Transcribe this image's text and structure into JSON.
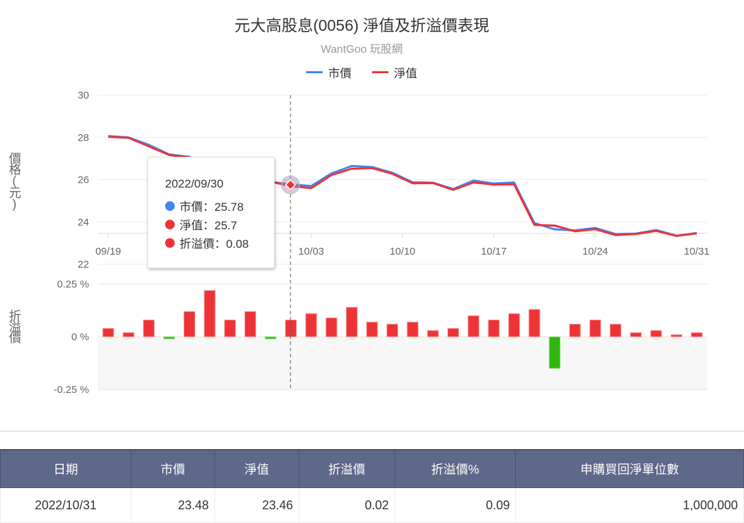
{
  "header": {
    "title": "元大高股息(0056) 淨值及折溢價表現",
    "subtitle": "WantGoo 玩股網"
  },
  "legend": [
    {
      "label": "市價",
      "color": "#4285f4"
    },
    {
      "label": "淨值",
      "color": "#ee3337"
    }
  ],
  "axes": {
    "price_title": "價格(元)",
    "premium_title": "折溢價",
    "price_ticks": [
      "30",
      "28",
      "26",
      "24",
      "22"
    ],
    "premium_ticks": [
      "0.25 %",
      "0 %",
      "-0.25 %"
    ],
    "x_ticks": [
      "09/19",
      "10/03",
      "10/10",
      "10/17",
      "10/24",
      "10/31"
    ]
  },
  "tooltip": {
    "date": "2022/09/30",
    "market_label": "市價：25.78",
    "nav_label": "淨值：25.7",
    "premium_label": "折溢價：0.08"
  },
  "chart_data": [
    {
      "type": "line",
      "title": "元大高股息(0056) 淨值及折溢價表現",
      "subtitle": "WantGoo 玩股網",
      "xlabel": "",
      "ylabel": "價格(元)",
      "ylim": [
        22,
        30
      ],
      "grid": true,
      "legend_position": "top",
      "x": [
        "09/19",
        "09/20",
        "09/21",
        "09/22",
        "09/23",
        "09/26",
        "09/27",
        "09/28",
        "09/29",
        "09/30",
        "10/03",
        "10/04",
        "10/05",
        "10/06",
        "10/07",
        "10/11",
        "10/12",
        "10/13",
        "10/14",
        "10/17",
        "10/18",
        "10/19",
        "10/20",
        "10/21",
        "10/24",
        "10/25",
        "10/26",
        "10/27",
        "10/28",
        "10/31"
      ],
      "series": [
        {
          "name": "市價",
          "color": "#4285f4",
          "values": [
            28.07,
            28.0,
            27.65,
            27.2,
            27.08,
            26.7,
            26.2,
            26.0,
            25.9,
            25.78,
            25.7,
            26.3,
            26.65,
            26.6,
            26.33,
            25.88,
            25.86,
            25.56,
            25.96,
            25.82,
            25.87,
            23.95,
            23.65,
            23.6,
            23.72,
            23.43,
            23.45,
            23.62,
            23.35,
            23.48
          ]
        },
        {
          "name": "淨值",
          "color": "#ee3337",
          "values": [
            28.03,
            27.98,
            27.58,
            27.17,
            27.05,
            26.65,
            26.15,
            25.98,
            25.9,
            25.7,
            25.6,
            26.22,
            26.52,
            26.55,
            26.28,
            25.83,
            25.84,
            25.52,
            25.87,
            25.77,
            25.78,
            23.86,
            23.83,
            23.56,
            23.66,
            23.38,
            23.43,
            23.58,
            23.34,
            23.46
          ]
        }
      ]
    },
    {
      "type": "bar",
      "title": "折溢價",
      "ylabel": "折溢價",
      "ylim": [
        -0.25,
        0.25
      ],
      "tick_labels": [
        "0.25 %",
        "0 %",
        "-0.25 %"
      ],
      "categories": [
        "09/19",
        "09/20",
        "09/21",
        "09/22",
        "09/23",
        "09/26",
        "09/27",
        "09/28",
        "09/29",
        "09/30",
        "10/03",
        "10/04",
        "10/05",
        "10/06",
        "10/07",
        "10/11",
        "10/12",
        "10/13",
        "10/14",
        "10/17",
        "10/18",
        "10/19",
        "10/20",
        "10/21",
        "10/24",
        "10/25",
        "10/26",
        "10/27",
        "10/28",
        "10/31"
      ],
      "values": [
        0.04,
        0.02,
        0.08,
        -0.01,
        0.12,
        0.22,
        0.08,
        0.12,
        -0.01,
        0.08,
        0.11,
        0.09,
        0.14,
        0.07,
        0.06,
        0.07,
        0.03,
        0.04,
        0.1,
        0.08,
        0.11,
        0.13,
        -0.15,
        0.06,
        0.08,
        0.06,
        0.02,
        0.03,
        0.01,
        0.02
      ],
      "positive_color": "#ee3337",
      "negative_color": "#2eb80e"
    }
  ],
  "table": {
    "headers": [
      "日期",
      "市價",
      "淨值",
      "折溢價",
      "折溢價%",
      "申購買回淨單位數"
    ],
    "rows": [
      {
        "date": "2022/10/31",
        "market": "23.48",
        "nav": "23.46",
        "premium": "0.02",
        "premium_pct": "0.09",
        "net_units": "1,000,000"
      }
    ]
  }
}
